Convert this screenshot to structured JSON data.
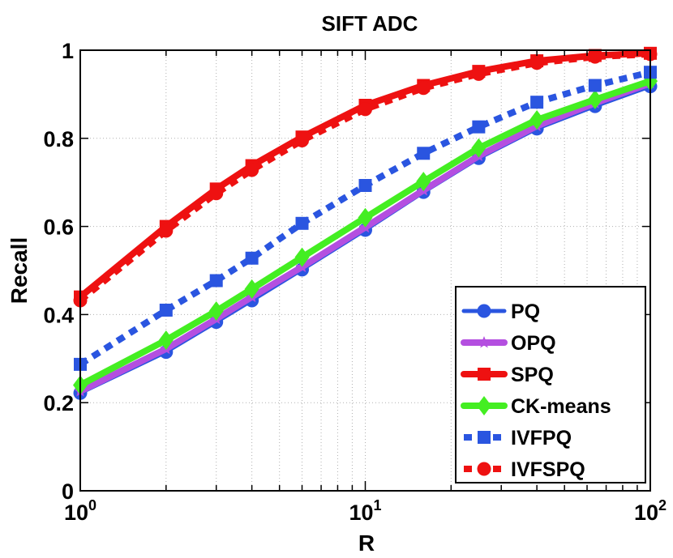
{
  "chart_data": {
    "type": "line",
    "title": "SIFT ADC",
    "xlabel": "R",
    "ylabel": "Recall",
    "xscale": "log",
    "xlim": [
      1,
      100
    ],
    "ylim": [
      0,
      1
    ],
    "grid": true,
    "legend_position": "bottom-right",
    "x": [
      1,
      2,
      3,
      4,
      6,
      10,
      16,
      25,
      40,
      64,
      100
    ],
    "yticks": [
      "0",
      "0.2",
      "0.4",
      "0.6",
      "0.8",
      "1"
    ],
    "xticks": [
      {
        "base": "10",
        "exp": "0"
      },
      {
        "base": "10",
        "exp": "1"
      },
      {
        "base": "10",
        "exp": "2"
      }
    ],
    "series": [
      {
        "name": "PQ",
        "color": "#2a55e0",
        "dash": "solid",
        "marker": "circle",
        "width": 5,
        "values": [
          0.222,
          0.315,
          0.383,
          0.432,
          0.502,
          0.592,
          0.678,
          0.755,
          0.822,
          0.873,
          0.918
        ]
      },
      {
        "name": "OPQ",
        "color": "#b44fe0",
        "dash": "solid",
        "marker": "star",
        "width": 8,
        "values": [
          0.226,
          0.322,
          0.39,
          0.44,
          0.508,
          0.598,
          0.682,
          0.76,
          0.828,
          0.88,
          0.925
        ]
      },
      {
        "name": "SPQ",
        "color": "#ee1111",
        "dash": "solid",
        "marker": "square",
        "width": 8,
        "values": [
          0.44,
          0.6,
          0.685,
          0.738,
          0.803,
          0.875,
          0.92,
          0.952,
          0.976,
          0.988,
          0.993
        ]
      },
      {
        "name": "CK-means",
        "color": "#44ee22",
        "dash": "solid",
        "marker": "diamond",
        "width": 8,
        "values": [
          0.24,
          0.342,
          0.408,
          0.458,
          0.53,
          0.62,
          0.702,
          0.778,
          0.842,
          0.888,
          0.93
        ]
      },
      {
        "name": "IVFPQ",
        "color": "#2a55e0",
        "dash": "dotted",
        "marker": "square",
        "width": 8,
        "values": [
          0.287,
          0.41,
          0.477,
          0.528,
          0.607,
          0.693,
          0.766,
          0.826,
          0.882,
          0.92,
          0.95
        ]
      },
      {
        "name": "IVFSPQ",
        "color": "#ee1111",
        "dash": "dotted",
        "marker": "circle",
        "width": 8,
        "values": [
          0.432,
          0.59,
          0.675,
          0.728,
          0.795,
          0.866,
          0.914,
          0.946,
          0.971,
          0.985,
          0.991
        ]
      }
    ]
  }
}
